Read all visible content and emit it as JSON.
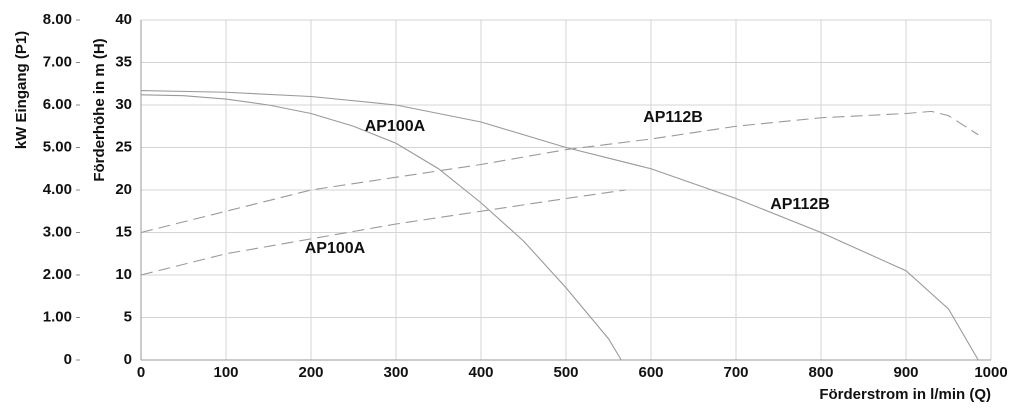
{
  "chart_data": {
    "type": "line",
    "xlabel": "Förderstrom in l/min (Q)",
    "ylabel": "Förderhöhe in m (H)",
    "y2label": "kW Eingang (P1)",
    "xlim": [
      0,
      1000
    ],
    "xticks": [
      0,
      100,
      200,
      300,
      400,
      500,
      600,
      700,
      800,
      900,
      1000
    ],
    "ylim": [
      0,
      40
    ],
    "yticks": [
      0,
      5,
      10,
      15,
      20,
      25,
      30,
      35,
      40
    ],
    "y2lim": [
      0,
      8
    ],
    "y2ticks": [
      0,
      {
        "value": 1,
        "label": "1.00"
      },
      {
        "value": 2,
        "label": "2.00"
      },
      {
        "value": 3,
        "label": "3.00"
      },
      {
        "value": 4,
        "label": "4.00"
      },
      {
        "value": 5,
        "label": "5.00"
      },
      {
        "value": 6,
        "label": "6.00"
      },
      {
        "value": 7,
        "label": "7.00"
      },
      {
        "value": 8,
        "label": "8.00"
      }
    ],
    "grid": true,
    "series": [
      {
        "name": "AP100A",
        "color": "#9a9a9a",
        "style": "solid",
        "x": [
          0,
          50,
          100,
          150,
          200,
          250,
          300,
          350,
          400,
          450,
          500,
          550,
          565
        ],
        "values": [
          31.2,
          31.1,
          30.7,
          30,
          29,
          27.5,
          25.5,
          22.5,
          18.5,
          14,
          8.5,
          2.5,
          0
        ]
      },
      {
        "name": "AP112B",
        "color": "#9a9a9a",
        "style": "solid",
        "x": [
          0,
          100,
          200,
          300,
          400,
          500,
          600,
          700,
          800,
          900,
          950,
          985
        ],
        "values": [
          31.7,
          31.5,
          31,
          30,
          28,
          25,
          22.5,
          19,
          15,
          10.5,
          6,
          0
        ]
      },
      {
        "name": "AP100A",
        "color": "#9a9a9a",
        "style": "dashed",
        "axis": "y2",
        "x": [
          0,
          100,
          200,
          300,
          400,
          500,
          570
        ],
        "values": [
          2,
          2.5,
          2.85,
          3.2,
          3.5,
          3.8,
          4
        ]
      },
      {
        "name": "AP112B",
        "color": "#9a9a9a",
        "style": "dashed",
        "axis": "y2",
        "x": [
          0,
          200,
          400,
          500,
          600,
          700,
          800,
          900,
          930,
          950,
          985
        ],
        "values": [
          3,
          4,
          4.6,
          4.95,
          5.2,
          5.5,
          5.7,
          5.8,
          5.85,
          5.75,
          5.3
        ]
      }
    ]
  }
}
